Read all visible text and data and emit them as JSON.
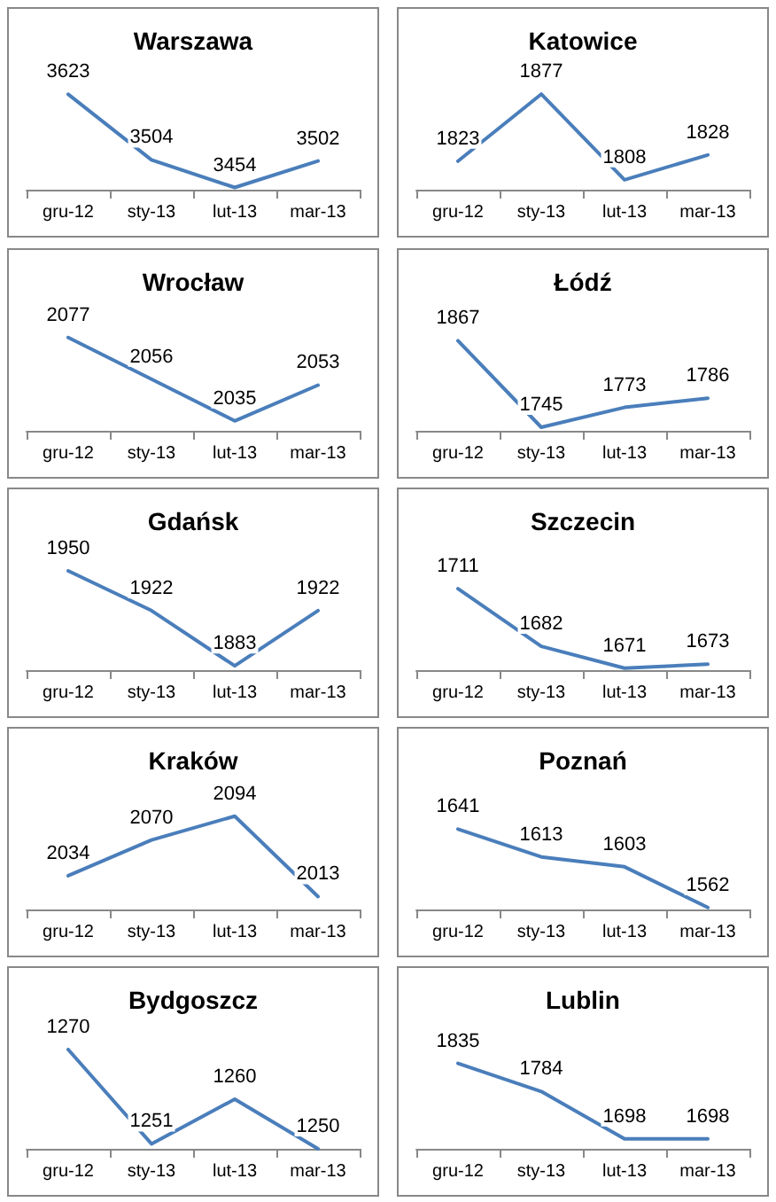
{
  "chart_data": [
    {
      "type": "line",
      "title": "Warszawa",
      "categories": [
        "gru-12",
        "sty-13",
        "lut-13",
        "mar-13"
      ],
      "series": [
        {
          "color": "#4a7ebb",
          "values": [
            3623,
            3504,
            3454,
            3502
          ]
        }
      ],
      "data_labels": true,
      "marker": "none"
    },
    {
      "type": "line",
      "title": "Katowice",
      "categories": [
        "gru-12",
        "sty-13",
        "lut-13",
        "mar-13"
      ],
      "series": [
        {
          "color": "#4a7ebb",
          "values": [
            1823,
            1877,
            1808,
            1828
          ]
        }
      ],
      "data_labels": true,
      "marker": "none"
    },
    {
      "type": "line",
      "title": "Wrocław",
      "categories": [
        "gru-12",
        "sty-13",
        "lut-13",
        "mar-13"
      ],
      "series": [
        {
          "color": "#4a7ebb",
          "values": [
            2077,
            2056,
            2035,
            2053
          ]
        }
      ],
      "data_labels": true,
      "marker": "none"
    },
    {
      "type": "line",
      "title": "Łódź",
      "categories": [
        "gru-12",
        "sty-13",
        "lut-13",
        "mar-13"
      ],
      "series": [
        {
          "color": "#4a7ebb",
          "values": [
            1867,
            1745,
            1773,
            1786
          ]
        }
      ],
      "data_labels": true,
      "marker": "none"
    },
    {
      "type": "line",
      "title": "Gdańsk",
      "categories": [
        "gru-12",
        "sty-13",
        "lut-13",
        "mar-13"
      ],
      "series": [
        {
          "color": "#4a7ebb",
          "values": [
            1950,
            1922,
            1883,
            1922
          ]
        }
      ],
      "data_labels": true,
      "marker": "none"
    },
    {
      "type": "line",
      "title": "Szczecin",
      "categories": [
        "gru-12",
        "sty-13",
        "lut-13",
        "mar-13"
      ],
      "series": [
        {
          "color": "#4a7ebb",
          "values": [
            1711,
            1682,
            1671,
            1673
          ]
        }
      ],
      "data_labels": true,
      "marker": "none"
    },
    {
      "type": "line",
      "title": "Kraków",
      "categories": [
        "gru-12",
        "sty-13",
        "lut-13",
        "mar-13"
      ],
      "series": [
        {
          "color": "#4a7ebb",
          "values": [
            2034,
            2070,
            2094,
            2013
          ]
        }
      ],
      "data_labels": true,
      "marker": "none"
    },
    {
      "type": "line",
      "title": "Poznań",
      "categories": [
        "gru-12",
        "sty-13",
        "lut-13",
        "mar-13"
      ],
      "series": [
        {
          "color": "#4a7ebb",
          "values": [
            1641,
            1613,
            1603,
            1562
          ]
        }
      ],
      "data_labels": true,
      "marker": "none"
    },
    {
      "type": "line",
      "title": "Bydgoszcz",
      "categories": [
        "gru-12",
        "sty-13",
        "lut-13",
        "mar-13"
      ],
      "series": [
        {
          "color": "#4a7ebb",
          "values": [
            1270,
            1251,
            1260,
            1250
          ]
        }
      ],
      "data_labels": true,
      "marker": "none"
    },
    {
      "type": "line",
      "title": "Lublin",
      "categories": [
        "gru-12",
        "sty-13",
        "lut-13",
        "mar-13"
      ],
      "series": [
        {
          "color": "#4a7ebb",
          "values": [
            1835,
            1784,
            1698,
            1698
          ]
        }
      ],
      "data_labels": true,
      "marker": "none"
    }
  ]
}
